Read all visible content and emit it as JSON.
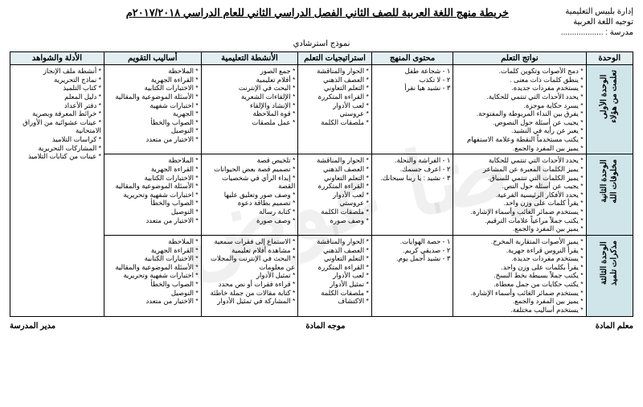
{
  "header": {
    "admin1": "إدارة بلبيس التعليمية",
    "admin2": "توجيه اللغة العربية",
    "admin3": "مدرسة : ...................",
    "title": "خريطة منهج اللغة العربية للصف الثاني الفصل الدراسي الثاني للعام الدراسي ٢٠١٧/٢٠١٨م",
    "subtitle": "نموذج استرشادي"
  },
  "columns": [
    "الوحدة",
    "نواتج التعلم",
    "محتوى المنهج",
    "استراتيجيات التعلم",
    "الأنشطة التعليمية",
    "أساليب التقويم",
    "الأدلة والشواهد"
  ],
  "rows": [
    {
      "unit": "الوحدة الأولى\nتعلمت من هؤلاء",
      "outcomes": "* دمج الأصوات وتكوين كلمات.\n* ينطق كلمات ذات معنى .\n* يستخدم مفردات جديدة.\n* يحدد الأحداث التي تنتمي للحكاية.\n* يسرد حكاية موجزة.\n* يفرق بين النداء المربوطة والمفتوحة.\n* يجيب عن أسئلة حول النصوص.\n* يعبر عن رأيه في النشيد.\n* يكتب مستخدماً النقطة وعلامة الاستفهام\n* يميز بين المفرد والجمع.",
      "content": "١ - شجاعة طفل\n٢ - لا تكذب\n٣ - نشيد هيا نقرأ",
      "strategies": "* الحوار والمناقشة\n* العصف الذهني\n* التعلم التعاوني\n* القراءة المتكررة\n* لعب الأدوار\n* عروستي\n* ملصقات الكلمة",
      "activities": "* جمع الصور\n* أفلام تعليمية\n* البحث في الإنترنت\n* الإلقاءات الشعرية\n* الإنشاد والإلقاء\n* قوة الملاحظة\n* عمل ملصقات",
      "assessment": "* الملاحظة\n* القراءة الجهرية\n* الاختبارات الكتابية\n* الأسئلة الموضوعية والمقالية\n* اختبارات شفهية\n* الجهرية\n* الصواب والخطأ\n* التوصيل\n* الاختيار من متعدد",
      "evidence_rowspan": true
    },
    {
      "unit": "الوحدة الثانية\nمخلوقات الله",
      "outcomes": "* يحدد الأحداث التي تنتمي للحكاية\n* يميز الكلمات المعبرة عن المشاعر\n* يميز الكلمات التي تنتمي للسياق.\n* يجيب عن أسئلة حول النص.\n* يحدد الأفكار الرئيسية الفرعية.\n* يقرأ كلمات على وزن واحد.\n* يستخدم ضمائر الغائب وأسماء الإشارة.\n* يكتب جملاً مراعياً علامات الترقيم.\n* يميز بين المفرد والجمع.",
      "content": "١ - الفراشة والنحلة.\n٢ - اعرف جسمك.\n٣ - نشيد : يا ربنا سبحانك.",
      "strategies": "* الحوار والمناقشة\n* العصف الذهني\n* التعلم التعاوني\n* القراءة المتكررة\n* لعب الأدوار\n* عروستي\n* ملصقات الكلمة\n* وصف صورة",
      "activities": "* تلخيص قصة\n* تصميم قصة بعض الحيوانات\n* إبداء الرأي في شخصيات القصة\n* وصف صور وتعليق عليها\n* تصميم بطاقة دعوة\n* كتابة رسالة\n* وصف صورة",
      "assessment": "* الملاحظة\n* القراءة الجهرية\n* الاختبارات الكتابية\n* الأسئلة الموضوعية والمقالية\n* اختبارات شفهية وتحريرية\n* الصواب والخطأ\n* التوصيل\n* الاختيار من متعدد"
    },
    {
      "unit": "الوحدة الثالثة\nمذكرات تلميذ",
      "outcomes": "* يميز الأصوات المتقاربة المخرج.\n* يقرأ النروس قراءة جهرية.\n* يستخدم مفردات جديدة.\n* يقرأ بكلمات على وزن واحد.\n* يكتب جملاً بسيطة بخط النسخ.\n* يكتب حكايات من جمل معطاة.\n* يستخدم ضمائر الغائب وأسماء الإشارة.\n* يميز بين المفرد والجمع.\n* يستخدم أساليب مختلفة.",
      "content": "١ - حصة الهوايات.\n٢ - صديقي كريم.\n٣ - نشيد أجمل يوم.",
      "strategies": "* الحوار والمناقشة\n* العصف الذهني\n* التعلم التعاوني\n* القراءة المتكررة\n* لعب الأدوار\n* تمثيل الأدوار\n* ملصقات الكلمة\n* الاكتشاف",
      "activities": "* الاستماع إلى فقرات سمعية\n* مشاهدة أفلام تعليمية\n* البحث في الإنترنت والمجلات عن معلومات\n* تمثيل الأدوار\n* قراءة فقرات أو نص محدد\n* كتابة مقالات من جملة خاطئة\n* المشاركة في تمثيل الأدوار",
      "assessment": "* الملاحظة\n* القراءة الجهرية\n* الاختبارات الكتابية\n* الأسئلة الموضوعية والمقالية\n* اختبارات شفهية وتحريرية\n* الصواب والخطأ\n* التوصيل\n* الاختيار من متعدد"
    }
  ],
  "evidence": "* أنشطة ملف الإنجاز\n* نماذج التحريرية\n* كتاب التلميذ\n* دليل المعلم\n* دفتر الأعداد\n* خرائط المعرفة وبصرية\n* عينات عشوائية من الأوراق الامتحانية\n* كراسات التلاميذ\n* المشاركات التحريرية\n* عينات من كتابات التلاميذ",
  "footer": {
    "r": "معلم المادة",
    "c": "موجه المادة",
    "l": "مدير المدرسة"
  },
  "colors": {
    "header_bg": "#e2eef2",
    "unit_bg": "#cfe5ea",
    "border": "#000000",
    "bg": "#ffffff"
  }
}
